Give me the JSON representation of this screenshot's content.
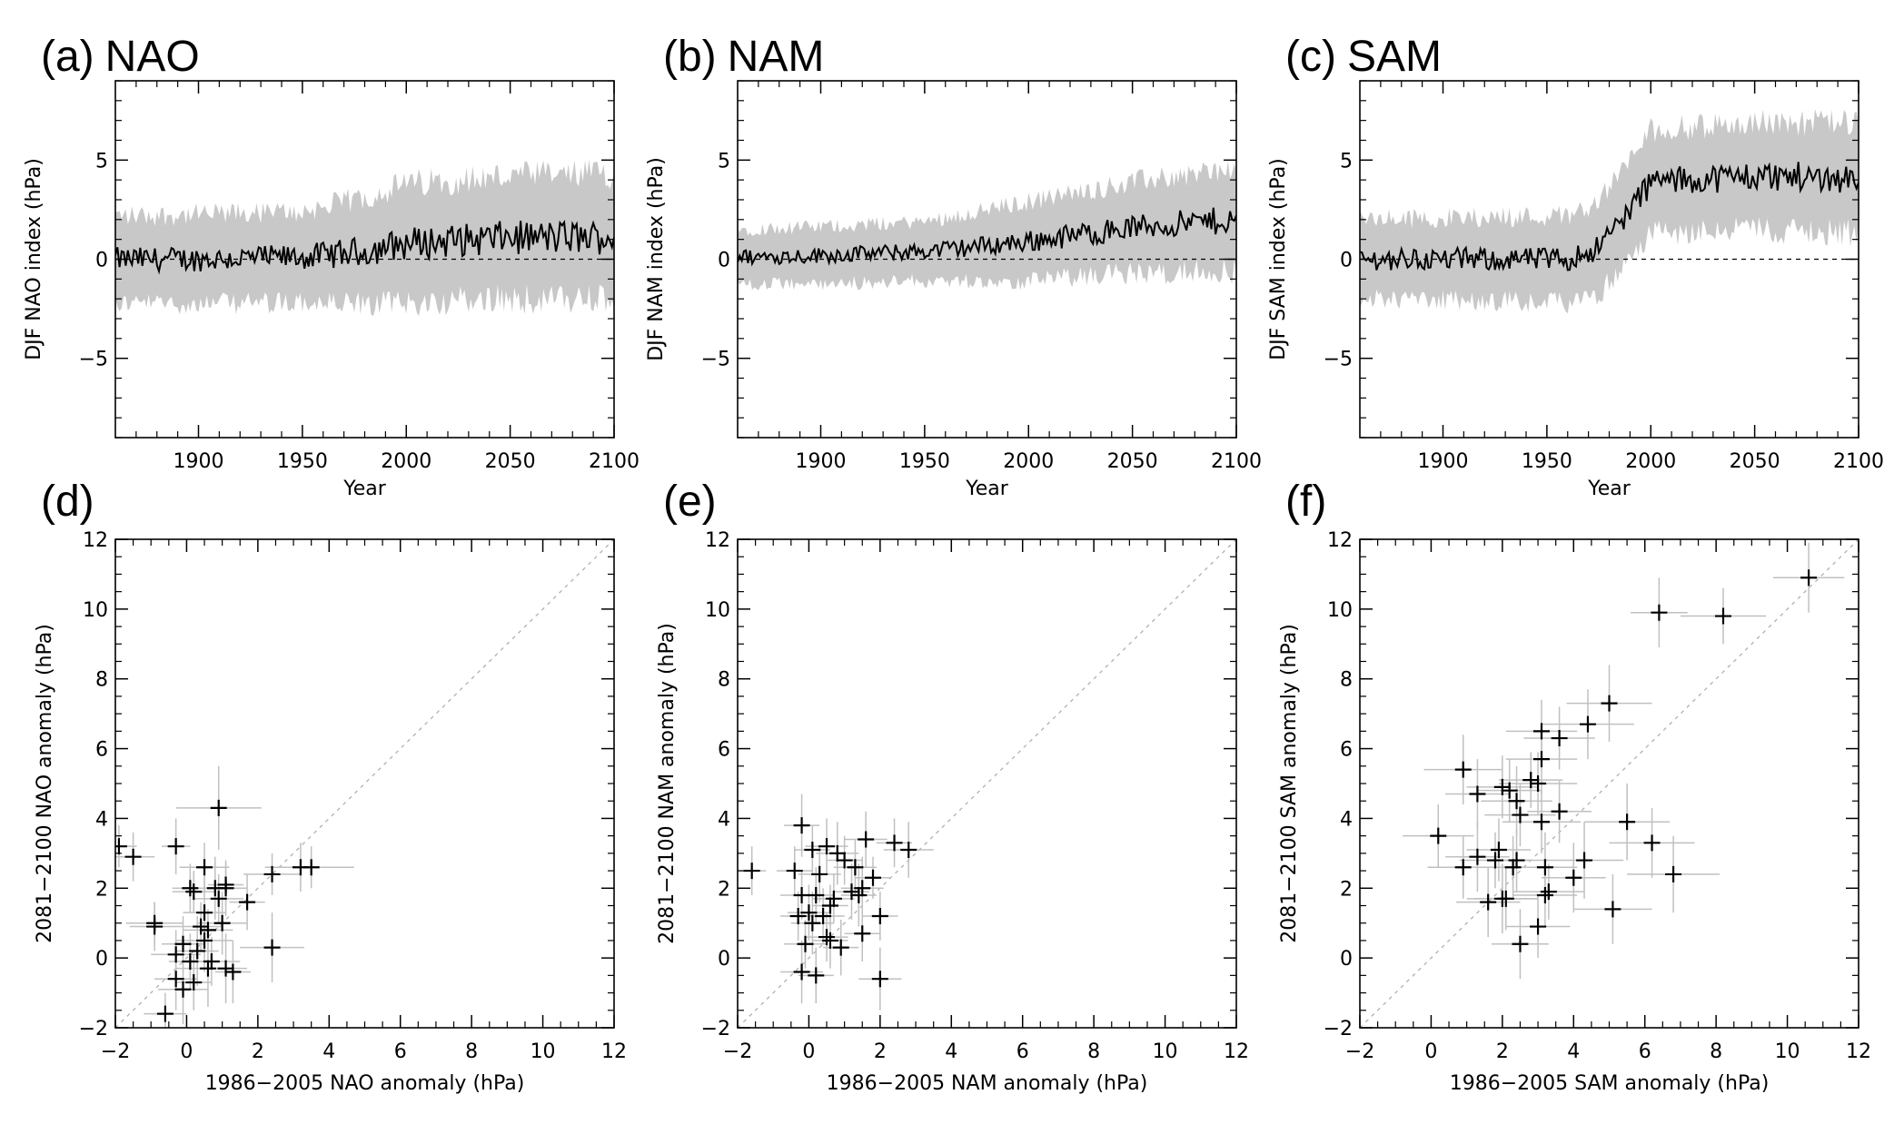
{
  "chart_data": [
    {
      "panel": "(a)",
      "title": "NAO",
      "type": "line",
      "xlabel": "Year",
      "ylabel": "DJF  NAO  index  (hPa)",
      "xlim": [
        1860,
        2100
      ],
      "ylim": [
        -9,
        9
      ],
      "xticks": [
        1900,
        1950,
        2000,
        2050,
        2100
      ],
      "yticks": [
        -5,
        0,
        5
      ],
      "trend": [
        [
          1860,
          0.0
        ],
        [
          1900,
          0.0
        ],
        [
          1950,
          0.1
        ],
        [
          1980,
          0.4
        ],
        [
          2000,
          0.8
        ],
        [
          2050,
          1.1
        ],
        [
          2100,
          1.1
        ]
      ],
      "spread": [
        [
          1860,
          2.2
        ],
        [
          1950,
          2.3
        ],
        [
          2000,
          3.0
        ],
        [
          2100,
          3.2
        ]
      ],
      "zero_line": true,
      "series_color": "#000000",
      "band_color": "#c8c8c8"
    },
    {
      "panel": "(b)",
      "title": "NAM",
      "type": "line",
      "xlabel": "Year",
      "ylabel": "DJF  NAM  index  (hPa)",
      "xlim": [
        1860,
        2100
      ],
      "ylim": [
        -9,
        9
      ],
      "xticks": [
        1900,
        1950,
        2000,
        2050,
        2100
      ],
      "yticks": [
        -5,
        0,
        5
      ],
      "trend": [
        [
          1860,
          0.1
        ],
        [
          1900,
          0.2
        ],
        [
          1950,
          0.4
        ],
        [
          2000,
          0.9
        ],
        [
          2050,
          1.6
        ],
        [
          2100,
          2.0
        ]
      ],
      "spread": [
        [
          1860,
          1.4
        ],
        [
          1950,
          1.5
        ],
        [
          2000,
          2.0
        ],
        [
          2100,
          2.6
        ]
      ],
      "zero_line": true,
      "series_color": "#000000",
      "band_color": "#c8c8c8"
    },
    {
      "panel": "(c)",
      "title": "SAM",
      "type": "line",
      "xlabel": "Year",
      "ylabel": "DJF  SAM  index  (hPa)",
      "xlim": [
        1860,
        2100
      ],
      "ylim": [
        -9,
        9
      ],
      "xticks": [
        1900,
        1950,
        2000,
        2050,
        2100
      ],
      "yticks": [
        -5,
        0,
        5
      ],
      "trend": [
        [
          1860,
          0.0
        ],
        [
          1960,
          0.0
        ],
        [
          1975,
          0.6
        ],
        [
          1990,
          2.5
        ],
        [
          2000,
          3.9
        ],
        [
          2050,
          4.2
        ],
        [
          2100,
          4.1
        ]
      ],
      "spread": [
        [
          1860,
          2.0
        ],
        [
          1960,
          2.2
        ],
        [
          2000,
          2.6
        ],
        [
          2100,
          2.8
        ]
      ],
      "zero_line": true,
      "series_color": "#000000",
      "band_color": "#c8c8c8"
    },
    {
      "panel": "(d)",
      "title": "",
      "type": "scatter",
      "xlabel": "1986−2005  NAO  anomaly  (hPa)",
      "ylabel": "2081−2100  NAO  anomaly  (hPa)",
      "xlim": [
        -2,
        12
      ],
      "ylim": [
        -2,
        12
      ],
      "xticks": [
        -2,
        0,
        2,
        4,
        6,
        8,
        10,
        12
      ],
      "yticks": [
        -2,
        0,
        2,
        4,
        6,
        8,
        10,
        12
      ],
      "one_to_one_line": true,
      "points": [
        [
          -1.9,
          3.2,
          0.5,
          0.6
        ],
        [
          -1.5,
          2.9,
          0.6,
          0.7
        ],
        [
          0.9,
          4.3,
          1.2,
          1.2
        ],
        [
          -0.3,
          3.2,
          0.4,
          0.8
        ],
        [
          3.2,
          2.6,
          1.0,
          0.7
        ],
        [
          3.5,
          2.6,
          1.2,
          0.6
        ],
        [
          2.4,
          2.4,
          0.8,
          0.6
        ],
        [
          1.1,
          2.0,
          0.6,
          0.8
        ],
        [
          0.5,
          2.6,
          0.7,
          0.7
        ],
        [
          0.8,
          2.0,
          0.6,
          0.9
        ],
        [
          0.1,
          2.0,
          0.5,
          0.7
        ],
        [
          1.1,
          2.1,
          0.5,
          0.6
        ],
        [
          0.2,
          1.9,
          0.6,
          0.6
        ],
        [
          1.7,
          1.6,
          0.5,
          0.8
        ],
        [
          0.9,
          1.7,
          0.7,
          0.7
        ],
        [
          0.5,
          1.3,
          0.6,
          1.0
        ],
        [
          1.0,
          1.0,
          0.7,
          0.9
        ],
        [
          -0.9,
          0.9,
          0.7,
          0.7
        ],
        [
          -0.9,
          1.0,
          0.8,
          0.6
        ],
        [
          0.4,
          0.9,
          0.6,
          0.7
        ],
        [
          0.6,
          0.8,
          0.7,
          0.6
        ],
        [
          0.5,
          0.5,
          0.8,
          0.9
        ],
        [
          -0.1,
          0.4,
          0.6,
          0.8
        ],
        [
          2.4,
          0.3,
          0.9,
          1.0
        ],
        [
          -0.3,
          0.1,
          0.7,
          0.7
        ],
        [
          0.3,
          0.2,
          0.6,
          1.0
        ],
        [
          0.1,
          -0.1,
          0.6,
          0.8
        ],
        [
          0.7,
          -0.1,
          0.8,
          0.7
        ],
        [
          0.6,
          -0.3,
          0.9,
          1.1
        ],
        [
          1.1,
          -0.3,
          0.6,
          1.0
        ],
        [
          1.3,
          -0.4,
          0.5,
          0.9
        ],
        [
          -0.3,
          -0.6,
          0.6,
          0.9
        ],
        [
          0.2,
          -0.7,
          0.5,
          0.8
        ],
        [
          -0.1,
          -0.9,
          0.7,
          1.0
        ],
        [
          -0.6,
          -1.6,
          0.6,
          0.6
        ]
      ]
    },
    {
      "panel": "(e)",
      "title": "",
      "type": "scatter",
      "xlabel": "1986−2005  NAM  anomaly  (hPa)",
      "ylabel": "2081−2100  NAM  anomaly  (hPa)",
      "xlim": [
        -2,
        12
      ],
      "ylim": [
        -2,
        12
      ],
      "xticks": [
        -2,
        0,
        2,
        4,
        6,
        8,
        10,
        12
      ],
      "yticks": [
        -2,
        0,
        2,
        4,
        6,
        8,
        10,
        12
      ],
      "one_to_one_line": true,
      "points": [
        [
          -1.6,
          2.5,
          0.4,
          0.7
        ],
        [
          -0.2,
          3.8,
          0.5,
          0.9
        ],
        [
          0.5,
          3.2,
          0.6,
          0.8
        ],
        [
          0.1,
          3.1,
          0.5,
          0.7
        ],
        [
          1.6,
          3.4,
          0.6,
          0.8
        ],
        [
          2.4,
          3.3,
          0.5,
          0.7
        ],
        [
          2.8,
          3.1,
          0.7,
          0.8
        ],
        [
          0.8,
          3.0,
          0.6,
          0.9
        ],
        [
          1.0,
          2.8,
          0.5,
          0.7
        ],
        [
          1.3,
          2.6,
          0.6,
          0.8
        ],
        [
          -0.4,
          2.5,
          0.5,
          0.7
        ],
        [
          0.3,
          2.4,
          0.6,
          0.8
        ],
        [
          1.8,
          2.3,
          0.5,
          0.6
        ],
        [
          1.5,
          2.0,
          0.6,
          0.9
        ],
        [
          1.2,
          1.9,
          0.5,
          0.8
        ],
        [
          -0.2,
          1.8,
          0.6,
          0.7
        ],
        [
          0.2,
          1.8,
          0.5,
          0.8
        ],
        [
          0.7,
          1.7,
          0.6,
          0.7
        ],
        [
          1.4,
          1.8,
          0.5,
          0.9
        ],
        [
          0.6,
          1.5,
          0.5,
          0.6
        ],
        [
          0.0,
          1.3,
          0.6,
          0.8
        ],
        [
          -0.3,
          1.2,
          0.5,
          0.7
        ],
        [
          0.4,
          1.2,
          0.6,
          0.8
        ],
        [
          2.0,
          1.2,
          0.5,
          0.7
        ],
        [
          0.1,
          1.0,
          0.6,
          0.9
        ],
        [
          1.5,
          0.7,
          0.5,
          0.8
        ],
        [
          0.5,
          0.6,
          0.6,
          0.7
        ],
        [
          0.6,
          0.5,
          0.5,
          0.8
        ],
        [
          -0.1,
          0.4,
          0.6,
          0.7
        ],
        [
          0.9,
          0.3,
          0.5,
          0.8
        ],
        [
          -0.2,
          -0.4,
          0.6,
          0.9
        ],
        [
          0.2,
          -0.5,
          0.5,
          0.8
        ],
        [
          2.0,
          -0.6,
          0.6,
          0.9
        ]
      ]
    },
    {
      "panel": "(f)",
      "title": "",
      "type": "scatter",
      "xlabel": "1986−2005  SAM  anomaly  (hPa)",
      "ylabel": "2081−2100  SAM  anomaly  (hPa)",
      "xlim": [
        -2,
        12
      ],
      "ylim": [
        -2,
        12
      ],
      "xticks": [
        -2,
        0,
        2,
        4,
        6,
        8,
        10,
        12
      ],
      "yticks": [
        -2,
        0,
        2,
        4,
        6,
        8,
        10,
        12
      ],
      "one_to_one_line": true,
      "points": [
        [
          10.6,
          10.9,
          1.0,
          1.0
        ],
        [
          6.4,
          9.9,
          0.8,
          1.0
        ],
        [
          8.2,
          9.8,
          1.2,
          0.8
        ],
        [
          5.0,
          7.3,
          1.2,
          1.1
        ],
        [
          4.4,
          6.7,
          1.3,
          1.0
        ],
        [
          3.6,
          6.3,
          1.0,
          0.9
        ],
        [
          3.1,
          6.5,
          1.0,
          0.9
        ],
        [
          3.1,
          5.7,
          1.0,
          1.0
        ],
        [
          0.9,
          5.4,
          1.1,
          1.0
        ],
        [
          2.8,
          5.1,
          0.9,
          0.8
        ],
        [
          3.0,
          5.0,
          1.1,
          0.9
        ],
        [
          1.3,
          4.7,
          0.9,
          1.0
        ],
        [
          2.0,
          4.9,
          1.0,
          0.9
        ],
        [
          2.2,
          4.8,
          0.9,
          0.9
        ],
        [
          2.4,
          4.5,
          1.0,
          1.0
        ],
        [
          3.6,
          4.2,
          0.9,
          0.9
        ],
        [
          2.5,
          4.1,
          1.0,
          0.9
        ],
        [
          3.1,
          3.9,
          1.1,
          0.9
        ],
        [
          5.5,
          3.9,
          1.2,
          1.1
        ],
        [
          0.2,
          3.5,
          1.0,
          0.9
        ],
        [
          6.2,
          3.3,
          1.2,
          1.0
        ],
        [
          1.9,
          3.1,
          0.9,
          0.9
        ],
        [
          1.3,
          2.9,
          0.9,
          1.0
        ],
        [
          1.8,
          2.8,
          1.0,
          0.8
        ],
        [
          2.4,
          2.8,
          0.9,
          0.9
        ],
        [
          4.3,
          2.8,
          1.1,
          1.1
        ],
        [
          0.9,
          2.6,
          1.0,
          0.9
        ],
        [
          2.3,
          2.6,
          0.9,
          0.9
        ],
        [
          3.2,
          2.6,
          0.9,
          1.0
        ],
        [
          6.8,
          2.4,
          1.3,
          1.1
        ],
        [
          4.0,
          2.3,
          0.9,
          1.0
        ],
        [
          3.2,
          1.8,
          0.9,
          0.9
        ],
        [
          3.3,
          1.9,
          1.0,
          0.8
        ],
        [
          2.1,
          1.7,
          0.9,
          0.9
        ],
        [
          2.0,
          1.7,
          1.0,
          1.0
        ],
        [
          1.6,
          1.6,
          0.9,
          1.0
        ],
        [
          5.1,
          1.4,
          1.1,
          1.0
        ],
        [
          3.0,
          0.9,
          0.9,
          0.9
        ],
        [
          2.5,
          0.4,
          0.8,
          1.0
        ]
      ]
    }
  ]
}
